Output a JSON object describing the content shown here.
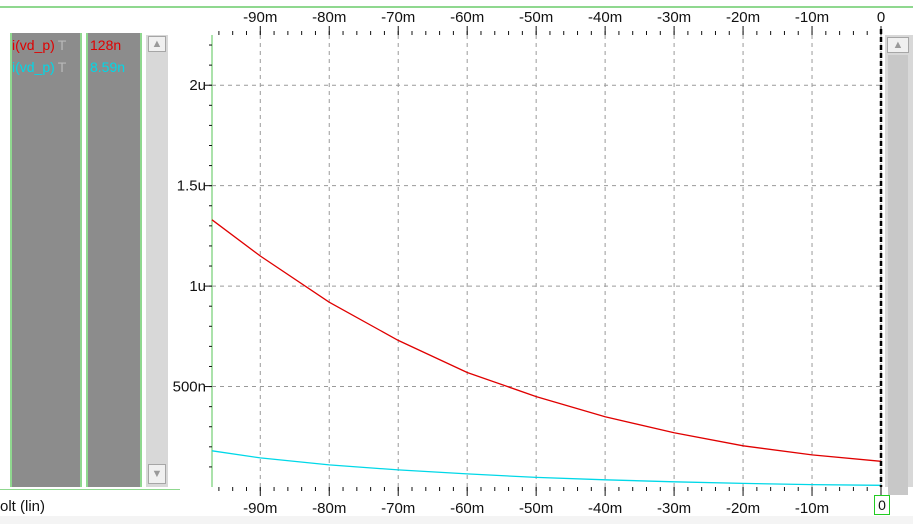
{
  "signals": [
    {
      "name": "i(vd_p)",
      "suffix": "T",
      "value": "128n",
      "color": "#e00000"
    },
    {
      "name": "i(vd_p)",
      "suffix": "T",
      "value": "8.59n",
      "color": "#00c8e0"
    }
  ],
  "footer": {
    "x_axis_label": "olt (lin)",
    "cursor_value": "0"
  },
  "chart_data": {
    "type": "line",
    "xlim": [
      -0.097,
      0.0
    ],
    "ylim": [
      0,
      2.25e-06
    ],
    "x_ticks": [
      {
        "value": -0.09,
        "label": "-90m"
      },
      {
        "value": -0.08,
        "label": "-80m"
      },
      {
        "value": -0.07,
        "label": "-70m"
      },
      {
        "value": -0.06,
        "label": "-60m"
      },
      {
        "value": -0.05,
        "label": "-50m"
      },
      {
        "value": -0.04,
        "label": "-40m"
      },
      {
        "value": -0.03,
        "label": "-30m"
      },
      {
        "value": -0.02,
        "label": "-20m"
      },
      {
        "value": -0.01,
        "label": "-10m"
      },
      {
        "value": 0.0,
        "label": "0"
      }
    ],
    "y_ticks": [
      {
        "value": 5e-07,
        "label": "500n"
      },
      {
        "value": 1e-06,
        "label": "1u"
      },
      {
        "value": 1.5e-06,
        "label": "1.5u"
      },
      {
        "value": 2e-06,
        "label": "2u"
      }
    ],
    "grid": true,
    "cursor_x": 0.0,
    "series": [
      {
        "color": "#e00000",
        "x": [
          -0.097,
          -0.09,
          -0.08,
          -0.07,
          -0.06,
          -0.05,
          -0.04,
          -0.03,
          -0.02,
          -0.01,
          0.0
        ],
        "y": [
          1.33e-06,
          1.15e-06,
          9.2e-07,
          7.3e-07,
          5.7e-07,
          4.5e-07,
          3.5e-07,
          2.7e-07,
          2.05e-07,
          1.6e-07,
          1.28e-07
        ]
      },
      {
        "color": "#00d8e8",
        "x": [
          -0.097,
          -0.09,
          -0.08,
          -0.07,
          -0.06,
          -0.05,
          -0.04,
          -0.03,
          -0.02,
          -0.01,
          0.0
        ],
        "y": [
          1.8e-07,
          1.45e-07,
          1.1e-07,
          8.5e-08,
          6.5e-08,
          4.8e-08,
          3.6e-08,
          2.6e-08,
          1.8e-08,
          1.2e-08,
          8.59e-09
        ]
      }
    ]
  }
}
